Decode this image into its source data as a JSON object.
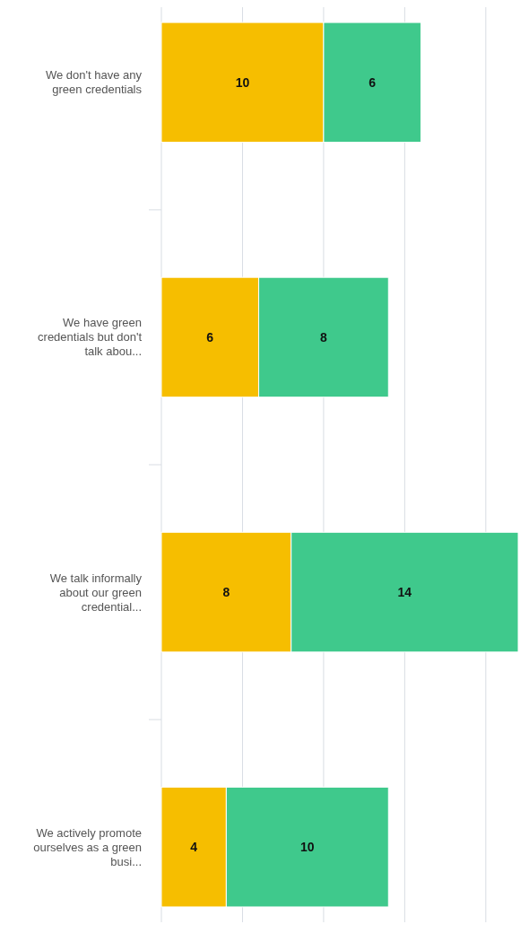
{
  "chart_data": {
    "type": "bar",
    "orientation": "horizontal",
    "stacked": true,
    "categories": [
      "We don't have any green credentials",
      "We have green credentials but don't talk abou...",
      "We talk informally about our green credential...",
      "We actively promote ourselves as a green busi..."
    ],
    "series": [
      {
        "color": "#f6be00",
        "values": [
          10,
          6,
          8,
          4
        ]
      },
      {
        "color": "#3fc98c",
        "values": [
          6,
          8,
          14,
          10
        ]
      }
    ],
    "xlim": [
      0,
      22
    ],
    "xticks": [
      {
        "value": 0,
        "label": null
      },
      {
        "value": 5,
        "label": null
      },
      {
        "value": 10,
        "label": null
      },
      {
        "value": 15,
        "label": null
      },
      {
        "value": 20,
        "label": null
      }
    ],
    "grid": "x",
    "tick_labels": "y",
    "data_labels": true
  }
}
